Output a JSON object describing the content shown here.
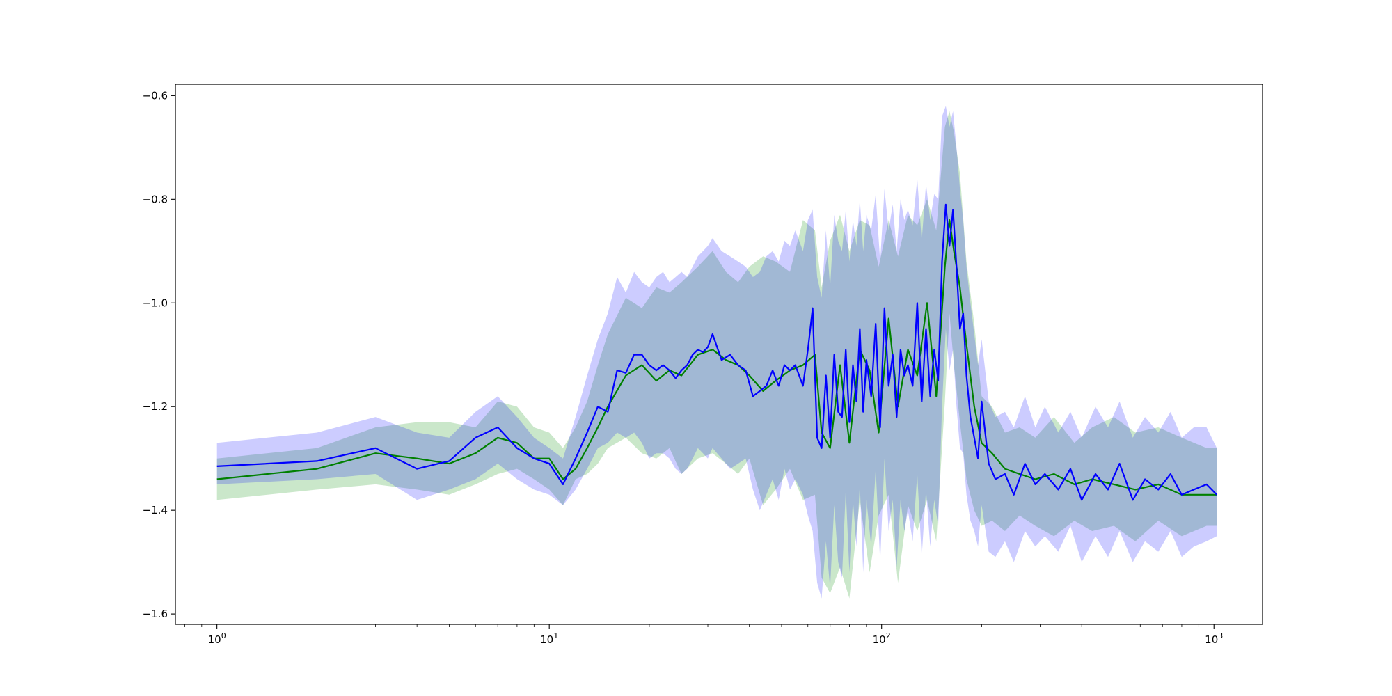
{
  "chart_data": {
    "type": "line",
    "title": "",
    "xlabel": "",
    "ylabel": "",
    "xscale": "log",
    "xlim": [
      0.75,
      1400
    ],
    "ylim": [
      -1.62,
      -0.578
    ],
    "grid": false,
    "x_ticks": [
      {
        "value": 1,
        "base": "10",
        "exp": "0"
      },
      {
        "value": 10,
        "base": "10",
        "exp": "1"
      },
      {
        "value": 100,
        "base": "10",
        "exp": "2"
      },
      {
        "value": 1000,
        "base": "10",
        "exp": "3"
      }
    ],
    "y_ticks": [
      {
        "value": -0.6,
        "label": "−0.6"
      },
      {
        "value": -0.8,
        "label": "−0.8"
      },
      {
        "value": -1.0,
        "label": "−1.0"
      },
      {
        "value": -1.2,
        "label": "−1.2"
      },
      {
        "value": -1.4,
        "label": "−1.4"
      },
      {
        "value": -1.6,
        "label": "−1.6"
      }
    ],
    "series": [
      {
        "color": "#008000",
        "band_color": "#2ca02c",
        "x": [
          1,
          2,
          3,
          4,
          5,
          6,
          7,
          8,
          9,
          10,
          11,
          12,
          13,
          14,
          15,
          17,
          19,
          21,
          23,
          25,
          28,
          31,
          34,
          37,
          40,
          44,
          48,
          53,
          58,
          63,
          66,
          70,
          75,
          80,
          86,
          92,
          98,
          105,
          112,
          120,
          128,
          137,
          146,
          155,
          160,
          165,
          172,
          180,
          190,
          200,
          215,
          235,
          260,
          290,
          330,
          380,
          430,
          500,
          580,
          680,
          800,
          950,
          1020
        ],
        "y": [
          -1.34,
          -1.32,
          -1.29,
          -1.3,
          -1.31,
          -1.29,
          -1.26,
          -1.27,
          -1.3,
          -1.3,
          -1.34,
          -1.32,
          -1.28,
          -1.24,
          -1.2,
          -1.14,
          -1.12,
          -1.15,
          -1.13,
          -1.14,
          -1.1,
          -1.09,
          -1.11,
          -1.12,
          -1.14,
          -1.17,
          -1.15,
          -1.13,
          -1.12,
          -1.1,
          -1.25,
          -1.28,
          -1.12,
          -1.27,
          -1.09,
          -1.13,
          -1.25,
          -1.03,
          -1.2,
          -1.09,
          -1.14,
          -1.0,
          -1.18,
          -0.93,
          -0.84,
          -0.9,
          -0.97,
          -1.08,
          -1.2,
          -1.27,
          -1.29,
          -1.32,
          -1.33,
          -1.34,
          -1.33,
          -1.35,
          -1.34,
          -1.35,
          -1.36,
          -1.35,
          -1.37,
          -1.37,
          -1.37
        ],
        "lower": [
          -1.38,
          -1.36,
          -1.35,
          -1.36,
          -1.37,
          -1.35,
          -1.33,
          -1.32,
          -1.34,
          -1.36,
          -1.39,
          -1.34,
          -1.33,
          -1.31,
          -1.28,
          -1.26,
          -1.29,
          -1.3,
          -1.28,
          -1.33,
          -1.3,
          -1.29,
          -1.31,
          -1.33,
          -1.3,
          -1.39,
          -1.36,
          -1.32,
          -1.38,
          -1.37,
          -1.53,
          -1.56,
          -1.51,
          -1.57,
          -1.38,
          -1.52,
          -1.41,
          -1.37,
          -1.54,
          -1.39,
          -1.44,
          -1.38,
          -1.46,
          -1.19,
          -1.02,
          -1.12,
          -1.23,
          -1.34,
          -1.4,
          -1.43,
          -1.42,
          -1.44,
          -1.41,
          -1.43,
          -1.45,
          -1.42,
          -1.44,
          -1.43,
          -1.46,
          -1.42,
          -1.45,
          -1.43,
          -1.43
        ],
        "upper": [
          -1.3,
          -1.28,
          -1.24,
          -1.23,
          -1.23,
          -1.24,
          -1.19,
          -1.2,
          -1.24,
          -1.25,
          -1.28,
          -1.24,
          -1.19,
          -1.12,
          -1.06,
          -0.99,
          -1.01,
          -0.97,
          -0.98,
          -0.96,
          -0.93,
          -0.9,
          -0.94,
          -0.96,
          -0.93,
          -0.91,
          -0.92,
          -0.94,
          -0.84,
          -0.86,
          -0.97,
          -0.88,
          -0.83,
          -0.9,
          -0.84,
          -0.85,
          -0.93,
          -0.84,
          -0.91,
          -0.83,
          -0.85,
          -0.8,
          -0.86,
          -0.66,
          -0.63,
          -0.67,
          -0.75,
          -0.92,
          -1.04,
          -1.18,
          -1.2,
          -1.25,
          -1.24,
          -1.26,
          -1.22,
          -1.27,
          -1.24,
          -1.22,
          -1.25,
          -1.24,
          -1.26,
          -1.28,
          -1.28
        ]
      },
      {
        "color": "#0000ff",
        "band_color": "#0000ff",
        "x": [
          1,
          2,
          3,
          4,
          5,
          6,
          7,
          8,
          9,
          10,
          11,
          12,
          13,
          14,
          15,
          16,
          17,
          18,
          19,
          20,
          21,
          22,
          23,
          24,
          25,
          26,
          27,
          28,
          29,
          30,
          31,
          33,
          35,
          37,
          39,
          41,
          43,
          45,
          47,
          49,
          51,
          53,
          55,
          58,
          60,
          62,
          64,
          66,
          68,
          70,
          72,
          74,
          76,
          78,
          80,
          82,
          84,
          86,
          88,
          90,
          93,
          96,
          99,
          102,
          105,
          108,
          111,
          114,
          117,
          120,
          124,
          128,
          132,
          136,
          140,
          144,
          148,
          152,
          156,
          160,
          164,
          168,
          172,
          176,
          180,
          185,
          190,
          195,
          200,
          210,
          220,
          235,
          250,
          270,
          290,
          310,
          340,
          370,
          400,
          440,
          480,
          520,
          570,
          620,
          680,
          740,
          800,
          870,
          950,
          1020
        ],
        "y": [
          -1.315,
          -1.305,
          -1.28,
          -1.32,
          -1.305,
          -1.26,
          -1.24,
          -1.28,
          -1.3,
          -1.31,
          -1.35,
          -1.3,
          -1.25,
          -1.2,
          -1.21,
          -1.13,
          -1.135,
          -1.1,
          -1.1,
          -1.12,
          -1.13,
          -1.12,
          -1.13,
          -1.145,
          -1.13,
          -1.12,
          -1.1,
          -1.09,
          -1.095,
          -1.085,
          -1.06,
          -1.11,
          -1.1,
          -1.12,
          -1.13,
          -1.18,
          -1.17,
          -1.16,
          -1.13,
          -1.16,
          -1.12,
          -1.13,
          -1.12,
          -1.16,
          -1.09,
          -1.01,
          -1.26,
          -1.28,
          -1.14,
          -1.26,
          -1.1,
          -1.21,
          -1.22,
          -1.09,
          -1.23,
          -1.12,
          -1.19,
          -1.05,
          -1.21,
          -1.11,
          -1.18,
          -1.04,
          -1.24,
          -1.01,
          -1.16,
          -1.1,
          -1.22,
          -1.09,
          -1.14,
          -1.12,
          -1.16,
          -1.0,
          -1.19,
          -1.05,
          -1.18,
          -1.09,
          -1.15,
          -0.92,
          -0.81,
          -0.89,
          -0.82,
          -0.93,
          -1.05,
          -1.02,
          -1.14,
          -1.22,
          -1.26,
          -1.3,
          -1.19,
          -1.31,
          -1.34,
          -1.33,
          -1.37,
          -1.31,
          -1.35,
          -1.33,
          -1.36,
          -1.32,
          -1.38,
          -1.33,
          -1.36,
          -1.31,
          -1.38,
          -1.34,
          -1.36,
          -1.33,
          -1.37,
          -1.36,
          -1.35,
          -1.37
        ],
        "lower": [
          -1.35,
          -1.34,
          -1.33,
          -1.38,
          -1.36,
          -1.34,
          -1.31,
          -1.34,
          -1.36,
          -1.37,
          -1.39,
          -1.36,
          -1.32,
          -1.28,
          -1.27,
          -1.25,
          -1.26,
          -1.25,
          -1.27,
          -1.3,
          -1.29,
          -1.29,
          -1.3,
          -1.32,
          -1.33,
          -1.32,
          -1.3,
          -1.28,
          -1.29,
          -1.3,
          -1.28,
          -1.3,
          -1.32,
          -1.31,
          -1.3,
          -1.36,
          -1.4,
          -1.37,
          -1.34,
          -1.38,
          -1.32,
          -1.36,
          -1.34,
          -1.37,
          -1.41,
          -1.44,
          -1.54,
          -1.57,
          -1.46,
          -1.55,
          -1.39,
          -1.5,
          -1.53,
          -1.36,
          -1.52,
          -1.38,
          -1.47,
          -1.35,
          -1.52,
          -1.38,
          -1.47,
          -1.32,
          -1.5,
          -1.3,
          -1.44,
          -1.38,
          -1.51,
          -1.38,
          -1.44,
          -1.4,
          -1.46,
          -1.33,
          -1.49,
          -1.36,
          -1.47,
          -1.38,
          -1.43,
          -1.2,
          -1.05,
          -1.13,
          -1.09,
          -1.2,
          -1.28,
          -1.29,
          -1.37,
          -1.42,
          -1.44,
          -1.47,
          -1.39,
          -1.48,
          -1.49,
          -1.46,
          -1.5,
          -1.44,
          -1.47,
          -1.45,
          -1.48,
          -1.43,
          -1.5,
          -1.45,
          -1.49,
          -1.44,
          -1.5,
          -1.46,
          -1.48,
          -1.44,
          -1.49,
          -1.47,
          -1.46,
          -1.45
        ],
        "upper": [
          -1.27,
          -1.25,
          -1.22,
          -1.25,
          -1.26,
          -1.21,
          -1.18,
          -1.22,
          -1.26,
          -1.28,
          -1.3,
          -1.22,
          -1.14,
          -1.07,
          -1.02,
          -0.95,
          -0.98,
          -0.94,
          -0.96,
          -0.97,
          -0.95,
          -0.94,
          -0.96,
          -0.95,
          -0.94,
          -0.95,
          -0.93,
          -0.91,
          -0.9,
          -0.89,
          -0.875,
          -0.9,
          -0.91,
          -0.92,
          -0.93,
          -0.95,
          -0.94,
          -0.91,
          -0.9,
          -0.92,
          -0.88,
          -0.89,
          -0.86,
          -0.9,
          -0.84,
          -0.82,
          -0.95,
          -0.99,
          -0.86,
          -0.97,
          -0.83,
          -0.88,
          -0.9,
          -0.82,
          -0.92,
          -0.84,
          -0.89,
          -0.8,
          -0.9,
          -0.83,
          -0.86,
          -0.79,
          -0.92,
          -0.78,
          -0.86,
          -0.81,
          -0.9,
          -0.8,
          -0.84,
          -0.82,
          -0.85,
          -0.76,
          -0.88,
          -0.77,
          -0.84,
          -0.79,
          -0.8,
          -0.64,
          -0.62,
          -0.66,
          -0.63,
          -0.7,
          -0.78,
          -0.84,
          -0.93,
          -1.0,
          -1.06,
          -1.12,
          -1.07,
          -1.19,
          -1.22,
          -1.21,
          -1.24,
          -1.18,
          -1.24,
          -1.2,
          -1.25,
          -1.21,
          -1.26,
          -1.2,
          -1.24,
          -1.19,
          -1.26,
          -1.22,
          -1.25,
          -1.21,
          -1.26,
          -1.24,
          -1.24,
          -1.28
        ]
      }
    ]
  }
}
